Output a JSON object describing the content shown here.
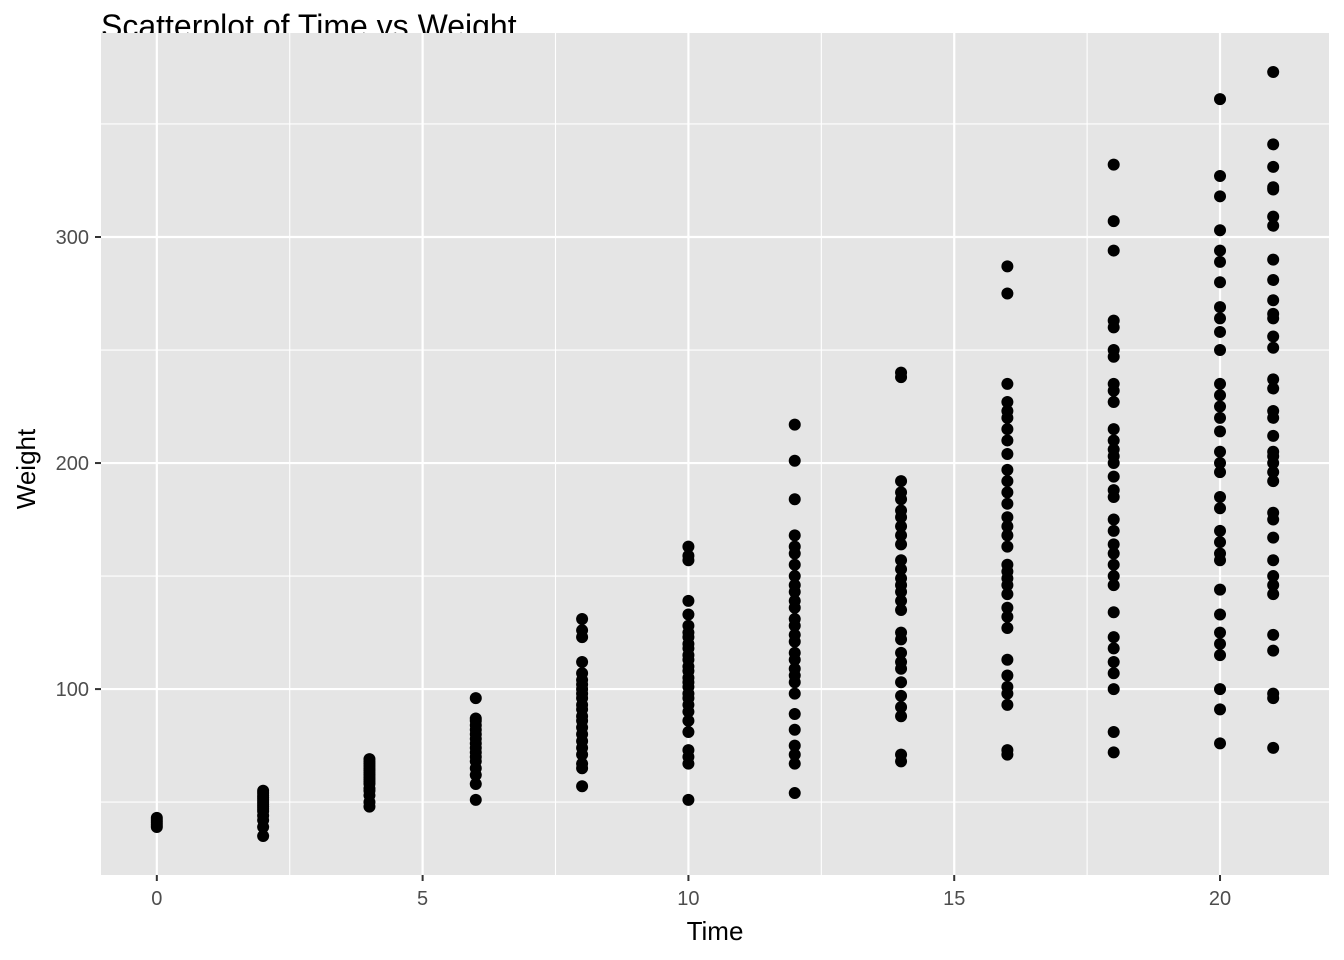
{
  "chart_data": {
    "type": "scatter",
    "title": "Scatterplot of Time vs Weight",
    "xlabel": "Time",
    "ylabel": "Weight",
    "xlim": [
      -1.05,
      22.05
    ],
    "ylim": [
      17.75,
      390.25
    ],
    "x_ticks": [
      0,
      5,
      10,
      15,
      20
    ],
    "y_ticks": [
      100,
      200,
      300
    ],
    "grid": true,
    "legend": "none",
    "colors": {
      "panel": "#e5e5e5",
      "grid": "#ffffff",
      "point": "#000000",
      "tick_text": "#4d4d4d"
    },
    "series": [
      {
        "points": [
          [
            0,
            39
          ],
          [
            0,
            40
          ],
          [
            0,
            41
          ],
          [
            0,
            42
          ],
          [
            0,
            43
          ],
          [
            2,
            35
          ],
          [
            2,
            39
          ],
          [
            2,
            42
          ],
          [
            2,
            44
          ],
          [
            2,
            46
          ],
          [
            2,
            47
          ],
          [
            2,
            48
          ],
          [
            2,
            49
          ],
          [
            2,
            50
          ],
          [
            2,
            51
          ],
          [
            2,
            52
          ],
          [
            2,
            53
          ],
          [
            2,
            54
          ],
          [
            2,
            55
          ],
          [
            4,
            48
          ],
          [
            4,
            50
          ],
          [
            4,
            53
          ],
          [
            4,
            55
          ],
          [
            4,
            56
          ],
          [
            4,
            58
          ],
          [
            4,
            59
          ],
          [
            4,
            60
          ],
          [
            4,
            61
          ],
          [
            4,
            62
          ],
          [
            4,
            63
          ],
          [
            4,
            64
          ],
          [
            4,
            65
          ],
          [
            4,
            66
          ],
          [
            4,
            67
          ],
          [
            4,
            68
          ],
          [
            4,
            69
          ],
          [
            6,
            51
          ],
          [
            6,
            58
          ],
          [
            6,
            62
          ],
          [
            6,
            65
          ],
          [
            6,
            68
          ],
          [
            6,
            70
          ],
          [
            6,
            72
          ],
          [
            6,
            74
          ],
          [
            6,
            76
          ],
          [
            6,
            78
          ],
          [
            6,
            80
          ],
          [
            6,
            82
          ],
          [
            6,
            84
          ],
          [
            6,
            86
          ],
          [
            6,
            87
          ],
          [
            6,
            96
          ],
          [
            8,
            57
          ],
          [
            8,
            65
          ],
          [
            8,
            67
          ],
          [
            8,
            71
          ],
          [
            8,
            74
          ],
          [
            8,
            77
          ],
          [
            8,
            80
          ],
          [
            8,
            83
          ],
          [
            8,
            86
          ],
          [
            8,
            88
          ],
          [
            8,
            91
          ],
          [
            8,
            93
          ],
          [
            8,
            96
          ],
          [
            8,
            98
          ],
          [
            8,
            100
          ],
          [
            8,
            102
          ],
          [
            8,
            104
          ],
          [
            8,
            107
          ],
          [
            8,
            112
          ],
          [
            8,
            123
          ],
          [
            8,
            126
          ],
          [
            8,
            131
          ],
          [
            10,
            51
          ],
          [
            10,
            67
          ],
          [
            10,
            70
          ],
          [
            10,
            73
          ],
          [
            10,
            81
          ],
          [
            10,
            86
          ],
          [
            10,
            90
          ],
          [
            10,
            93
          ],
          [
            10,
            96
          ],
          [
            10,
            98
          ],
          [
            10,
            101
          ],
          [
            10,
            103
          ],
          [
            10,
            105
          ],
          [
            10,
            108
          ],
          [
            10,
            110
          ],
          [
            10,
            113
          ],
          [
            10,
            115
          ],
          [
            10,
            118
          ],
          [
            10,
            120
          ],
          [
            10,
            123
          ],
          [
            10,
            125
          ],
          [
            10,
            128
          ],
          [
            10,
            133
          ],
          [
            10,
            139
          ],
          [
            10,
            157
          ],
          [
            10,
            159
          ],
          [
            10,
            163
          ],
          [
            12,
            54
          ],
          [
            12,
            67
          ],
          [
            12,
            71
          ],
          [
            12,
            75
          ],
          [
            12,
            82
          ],
          [
            12,
            89
          ],
          [
            12,
            98
          ],
          [
            12,
            103
          ],
          [
            12,
            106
          ],
          [
            12,
            109
          ],
          [
            12,
            113
          ],
          [
            12,
            116
          ],
          [
            12,
            121
          ],
          [
            12,
            124
          ],
          [
            12,
            128
          ],
          [
            12,
            131
          ],
          [
            12,
            136
          ],
          [
            12,
            139
          ],
          [
            12,
            143
          ],
          [
            12,
            146
          ],
          [
            12,
            150
          ],
          [
            12,
            155
          ],
          [
            12,
            160
          ],
          [
            12,
            163
          ],
          [
            12,
            168
          ],
          [
            12,
            184
          ],
          [
            12,
            201
          ],
          [
            12,
            217
          ],
          [
            14,
            68
          ],
          [
            14,
            71
          ],
          [
            14,
            88
          ],
          [
            14,
            92
          ],
          [
            14,
            97
          ],
          [
            14,
            103
          ],
          [
            14,
            109
          ],
          [
            14,
            112
          ],
          [
            14,
            116
          ],
          [
            14,
            122
          ],
          [
            14,
            125
          ],
          [
            14,
            135
          ],
          [
            14,
            139
          ],
          [
            14,
            143
          ],
          [
            14,
            146
          ],
          [
            14,
            149
          ],
          [
            14,
            153
          ],
          [
            14,
            157
          ],
          [
            14,
            164
          ],
          [
            14,
            168
          ],
          [
            14,
            172
          ],
          [
            14,
            176
          ],
          [
            14,
            179
          ],
          [
            14,
            184
          ],
          [
            14,
            187
          ],
          [
            14,
            192
          ],
          [
            14,
            238
          ],
          [
            14,
            240
          ],
          [
            16,
            71
          ],
          [
            16,
            73
          ],
          [
            16,
            93
          ],
          [
            16,
            98
          ],
          [
            16,
            101
          ],
          [
            16,
            106
          ],
          [
            16,
            113
          ],
          [
            16,
            127
          ],
          [
            16,
            132
          ],
          [
            16,
            136
          ],
          [
            16,
            142
          ],
          [
            16,
            146
          ],
          [
            16,
            149
          ],
          [
            16,
            152
          ],
          [
            16,
            155
          ],
          [
            16,
            163
          ],
          [
            16,
            168
          ],
          [
            16,
            172
          ],
          [
            16,
            176
          ],
          [
            16,
            182
          ],
          [
            16,
            187
          ],
          [
            16,
            192
          ],
          [
            16,
            197
          ],
          [
            16,
            204
          ],
          [
            16,
            210
          ],
          [
            16,
            215
          ],
          [
            16,
            220
          ],
          [
            16,
            223
          ],
          [
            16,
            227
          ],
          [
            16,
            235
          ],
          [
            16,
            275
          ],
          [
            16,
            287
          ],
          [
            18,
            72
          ],
          [
            18,
            81
          ],
          [
            18,
            100
          ],
          [
            18,
            107
          ],
          [
            18,
            112
          ],
          [
            18,
            118
          ],
          [
            18,
            123
          ],
          [
            18,
            134
          ],
          [
            18,
            146
          ],
          [
            18,
            150
          ],
          [
            18,
            155
          ],
          [
            18,
            160
          ],
          [
            18,
            164
          ],
          [
            18,
            170
          ],
          [
            18,
            175
          ],
          [
            18,
            185
          ],
          [
            18,
            188
          ],
          [
            18,
            194
          ],
          [
            18,
            200
          ],
          [
            18,
            203
          ],
          [
            18,
            206
          ],
          [
            18,
            210
          ],
          [
            18,
            215
          ],
          [
            18,
            227
          ],
          [
            18,
            232
          ],
          [
            18,
            235
          ],
          [
            18,
            247
          ],
          [
            18,
            250
          ],
          [
            18,
            260
          ],
          [
            18,
            263
          ],
          [
            18,
            294
          ],
          [
            18,
            307
          ],
          [
            18,
            332
          ],
          [
            20,
            76
          ],
          [
            20,
            91
          ],
          [
            20,
            100
          ],
          [
            20,
            115
          ],
          [
            20,
            120
          ],
          [
            20,
            125
          ],
          [
            20,
            133
          ],
          [
            20,
            144
          ],
          [
            20,
            157
          ],
          [
            20,
            160
          ],
          [
            20,
            165
          ],
          [
            20,
            170
          ],
          [
            20,
            180
          ],
          [
            20,
            185
          ],
          [
            20,
            196
          ],
          [
            20,
            200
          ],
          [
            20,
            205
          ],
          [
            20,
            214
          ],
          [
            20,
            220
          ],
          [
            20,
            225
          ],
          [
            20,
            230
          ],
          [
            20,
            235
          ],
          [
            20,
            250
          ],
          [
            20,
            258
          ],
          [
            20,
            264
          ],
          [
            20,
            269
          ],
          [
            20,
            280
          ],
          [
            20,
            289
          ],
          [
            20,
            294
          ],
          [
            20,
            303
          ],
          [
            20,
            318
          ],
          [
            20,
            327
          ],
          [
            20,
            361
          ],
          [
            21,
            74
          ],
          [
            21,
            96
          ],
          [
            21,
            98
          ],
          [
            21,
            117
          ],
          [
            21,
            124
          ],
          [
            21,
            142
          ],
          [
            21,
            146
          ],
          [
            21,
            150
          ],
          [
            21,
            157
          ],
          [
            21,
            167
          ],
          [
            21,
            175
          ],
          [
            21,
            178
          ],
          [
            21,
            192
          ],
          [
            21,
            196
          ],
          [
            21,
            200
          ],
          [
            21,
            203
          ],
          [
            21,
            205
          ],
          [
            21,
            212
          ],
          [
            21,
            220
          ],
          [
            21,
            223
          ],
          [
            21,
            233
          ],
          [
            21,
            237
          ],
          [
            21,
            251
          ],
          [
            21,
            256
          ],
          [
            21,
            264
          ],
          [
            21,
            266
          ],
          [
            21,
            272
          ],
          [
            21,
            281
          ],
          [
            21,
            290
          ],
          [
            21,
            305
          ],
          [
            21,
            309
          ],
          [
            21,
            321
          ],
          [
            21,
            322
          ],
          [
            21,
            331
          ],
          [
            21,
            341
          ],
          [
            21,
            373
          ]
        ]
      }
    ]
  }
}
